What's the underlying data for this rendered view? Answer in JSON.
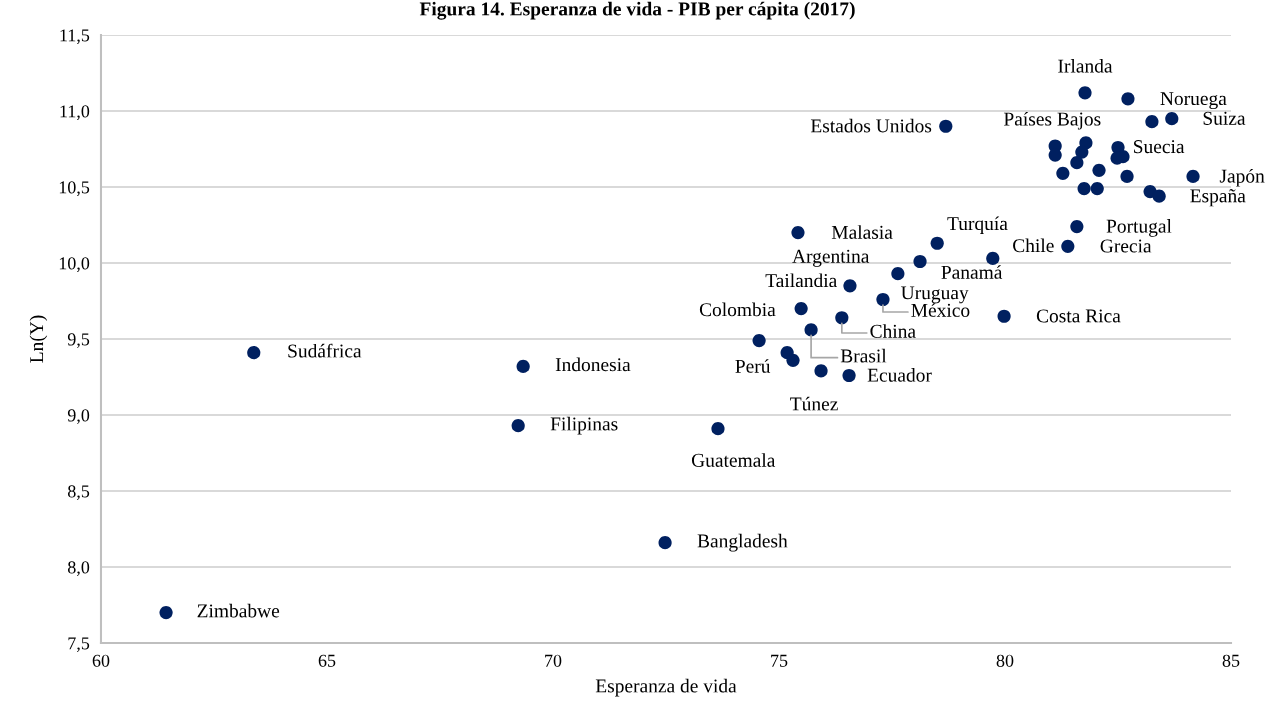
{
  "chart_data": {
    "type": "scatter",
    "title": "Figura 14. Esperanza de vida - PIB per cápita (2017)",
    "xlabel": "Esperanza de vida",
    "ylabel": "Ln(Y)",
    "x": [
      61.44,
      63.38,
      69.34,
      69.23,
      73.65,
      72.48,
      74.56,
      75.18,
      75.31,
      75.49,
      75.71,
      75.93,
      76.55,
      76.39,
      75.42,
      76.57,
      77.3,
      77.63,
      78.12,
      78.5,
      79.73,
      79.98,
      78.69,
      81.59,
      81.39,
      81.77,
      82.72,
      83.69,
      83.25,
      81.11,
      81.11,
      81.79,
      81.7,
      81.59,
      82.5,
      82.61,
      82.48,
      81.28,
      82.08,
      82.7,
      81.75,
      82.04,
      84.16,
      83.21,
      83.41
    ],
    "values": [
      7.7,
      9.41,
      9.32,
      8.93,
      8.91,
      8.16,
      9.49,
      9.41,
      9.36,
      9.7,
      9.56,
      9.29,
      9.26,
      9.64,
      10.2,
      9.85,
      9.76,
      9.93,
      10.01,
      10.13,
      10.03,
      9.65,
      10.9,
      10.24,
      10.11,
      11.12,
      11.08,
      10.95,
      10.93,
      10.77,
      10.71,
      10.79,
      10.73,
      10.66,
      10.76,
      10.7,
      10.69,
      10.59,
      10.61,
      10.57,
      10.49,
      10.49,
      10.57,
      10.47,
      10.44
    ],
    "color": "#002060",
    "marker": "circle",
    "grid": "y",
    "legend": false,
    "xlim": [
      60,
      85
    ],
    "xticks": [
      60,
      65,
      70,
      75,
      80,
      85
    ],
    "ylim": [
      7.5,
      11.5
    ],
    "yticks": [
      {
        "value": 7.5,
        "label": "7,5"
      },
      {
        "value": 8.0,
        "label": "8,0"
      },
      {
        "value": 8.5,
        "label": "8,5"
      },
      {
        "value": 9.0,
        "label": "9,0"
      },
      {
        "value": 9.5,
        "label": "9,5"
      },
      {
        "value": 10.0,
        "label": "10,0"
      },
      {
        "value": 10.5,
        "label": "10,5"
      },
      {
        "value": 11.0,
        "label": "11,0"
      },
      {
        "value": 11.5,
        "label": "11,5"
      }
    ],
    "annotations": [
      {
        "text": "Zimbabwe",
        "x": 61.44,
        "y": 7.7
      },
      {
        "text": "Sudáfrica",
        "x": 63.38,
        "y": 9.41
      },
      {
        "text": "Indonesia",
        "x": 69.34,
        "y": 9.32
      },
      {
        "text": "Filipinas",
        "x": 69.23,
        "y": 8.93
      },
      {
        "text": "Guatemala",
        "x": 73.65,
        "y": 8.91
      },
      {
        "text": "Bangladesh",
        "x": 72.48,
        "y": 8.16
      },
      {
        "text": "Colombia",
        "x": 74.56,
        "y": 9.49
      },
      {
        "text": "Perú",
        "x": 75.18,
        "y": 9.41
      },
      {
        "text": "Tailandia",
        "x": 75.49,
        "y": 9.7
      },
      {
        "text": "Brasil",
        "x": 75.71,
        "y": 9.56
      },
      {
        "text": "Túnez",
        "x": 75.93,
        "y": 9.29
      },
      {
        "text": "Ecuador",
        "x": 76.55,
        "y": 9.26
      },
      {
        "text": "China",
        "x": 76.39,
        "y": 9.64
      },
      {
        "text": "Malasia",
        "x": 75.42,
        "y": 10.2
      },
      {
        "text": "Argentina",
        "x": 76.57,
        "y": 9.85
      },
      {
        "text": "México",
        "x": 77.3,
        "y": 9.76
      },
      {
        "text": "Uruguay",
        "x": 77.63,
        "y": 9.93
      },
      {
        "text": "Panamá",
        "x": 78.12,
        "y": 10.01
      },
      {
        "text": "Turquía",
        "x": 78.5,
        "y": 10.13
      },
      {
        "text": "Chile",
        "x": 79.73,
        "y": 10.03
      },
      {
        "text": "Costa Rica",
        "x": 79.98,
        "y": 9.65
      },
      {
        "text": "Estados Unidos",
        "x": 78.69,
        "y": 10.9
      },
      {
        "text": "Portugal",
        "x": 81.59,
        "y": 10.24
      },
      {
        "text": "Grecia",
        "x": 81.39,
        "y": 10.11
      },
      {
        "text": "Irlanda",
        "x": 81.77,
        "y": 11.12
      },
      {
        "text": "Noruega",
        "x": 82.72,
        "y": 11.08
      },
      {
        "text": "Suiza",
        "x": 83.69,
        "y": 10.95
      },
      {
        "text": "Países Bajos",
        "x": 81.79,
        "y": 10.79
      },
      {
        "text": "Suecia",
        "x": 82.61,
        "y": 10.7
      },
      {
        "text": "Japón",
        "x": 84.16,
        "y": 10.57
      },
      {
        "text": "España",
        "x": 83.41,
        "y": 10.44
      }
    ]
  }
}
